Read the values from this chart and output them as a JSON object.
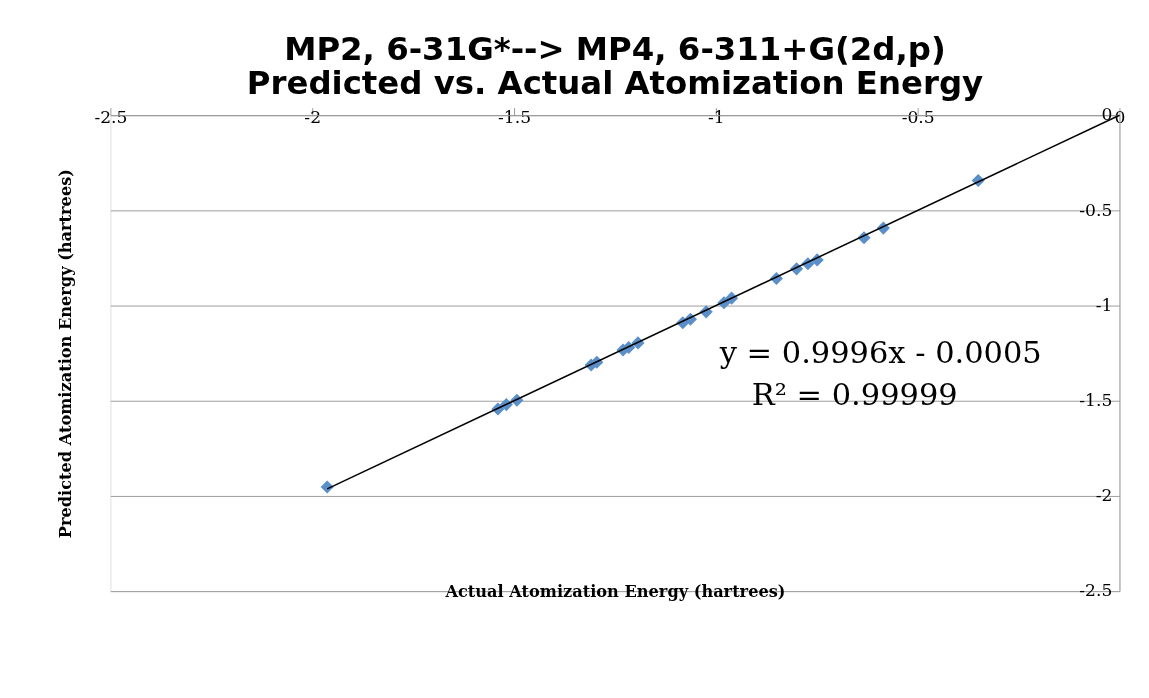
{
  "chart_data": {
    "type": "scatter",
    "title": [
      "MP2, 6-31G*--> MP4, 6-311+G(2d,p)",
      "Predicted vs. Actual Atomization Energy"
    ],
    "xlabel": "Actual Atomization Energy (hartrees)",
    "ylabel": "Predicted Atomization Energy (hartrees)",
    "xlim": [
      -2.5,
      0
    ],
    "xticks": [
      -2.5,
      -2,
      -1.5,
      -1,
      -0.5,
      0
    ],
    "ylim": [
      -2.5,
      0
    ],
    "yticks": [
      -2.5,
      -2,
      -1.5,
      -1,
      -0.5,
      0
    ],
    "grid": "y",
    "marker": "diamond",
    "legend": false,
    "series": [
      {
        "color": "#5b8fc9",
        "x": [
          -1.963,
          -1.54,
          -1.519,
          -1.493,
          -1.309,
          -1.295,
          -1.23,
          -1.216,
          -1.193,
          -1.082,
          -1.063,
          -1.024,
          -0.98,
          -0.961,
          -0.85,
          -0.8,
          -0.772,
          -0.749,
          -0.633,
          -0.585,
          -0.35
        ],
        "values": [
          -1.953,
          -1.543,
          -1.52,
          -1.497,
          -1.312,
          -1.298,
          -1.233,
          -1.22,
          -1.196,
          -1.09,
          -1.072,
          -1.033,
          -0.985,
          -0.961,
          -0.858,
          -0.807,
          -0.78,
          -0.76,
          -0.644,
          -0.593,
          -0.343
        ]
      },
      {
        "type": "line",
        "marker": "none",
        "color": "#000000",
        "x": [
          -1.963,
          0
        ],
        "values": [
          -1.963,
          0
        ]
      }
    ],
    "annotations": [
      "y = 0.9996x - 0.0005",
      "R² = 0.99999"
    ]
  }
}
